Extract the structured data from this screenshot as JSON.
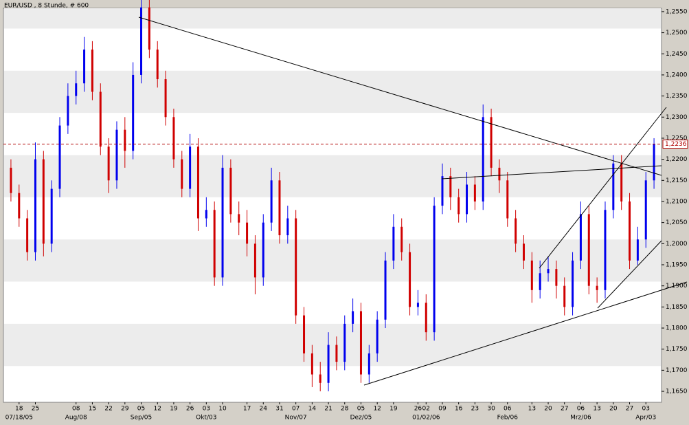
{
  "chart_data": {
    "type": "candlestick",
    "title": "EUR/USD , 8 Stunde, # 600",
    "categories": [
      null,
      "18",
      null,
      "25",
      null,
      null,
      null,
      null,
      "08",
      null,
      "15",
      null,
      "22",
      null,
      "29",
      null,
      "05",
      null,
      "12",
      null,
      "19",
      null,
      "26",
      null,
      "03",
      null,
      "10",
      null,
      null,
      "17",
      null,
      "24",
      null,
      "31",
      null,
      "07",
      null,
      "14",
      null,
      "21",
      null,
      "28",
      null,
      "05",
      null,
      "12",
      null,
      "19",
      null,
      null,
      "26",
      "02",
      null,
      "09",
      null,
      "16",
      null,
      "23",
      null,
      "30",
      null,
      "06",
      null,
      null,
      "13",
      null,
      "20",
      null,
      "27",
      null,
      "06",
      null,
      "13",
      null,
      "20",
      null,
      "27",
      null,
      "03",
      null
    ],
    "months": [
      null,
      "07/18/05",
      null,
      null,
      null,
      null,
      null,
      null,
      "Aug/08",
      null,
      null,
      null,
      null,
      null,
      null,
      null,
      "Sep/05",
      null,
      null,
      null,
      null,
      null,
      null,
      null,
      "Okt/03",
      null,
      null,
      null,
      null,
      null,
      null,
      null,
      null,
      null,
      null,
      "Nov/07",
      null,
      null,
      null,
      null,
      null,
      null,
      null,
      "Dez/05",
      null,
      null,
      null,
      null,
      null,
      null,
      null,
      "01/02/06",
      null,
      null,
      null,
      null,
      null,
      null,
      null,
      null,
      null,
      "Feb/06",
      null,
      null,
      null,
      null,
      null,
      null,
      null,
      null,
      "Mrz/06",
      null,
      null,
      null,
      null,
      null,
      null,
      null,
      "Apr/03",
      null
    ],
    "open": [
      1.218,
      1.212,
      1.206,
      1.198,
      1.22,
      1.2,
      1.213,
      1.228,
      1.235,
      1.238,
      1.246,
      1.236,
      1.223,
      1.215,
      1.227,
      1.222,
      1.24,
      1.256,
      1.246,
      1.239,
      1.23,
      1.22,
      1.213,
      1.223,
      1.206,
      1.208,
      1.192,
      1.218,
      1.207,
      1.205,
      1.2,
      1.192,
      1.205,
      1.215,
      1.202,
      1.206,
      1.183,
      1.174,
      1.169,
      1.167,
      1.176,
      1.172,
      1.181,
      1.184,
      1.169,
      1.174,
      1.182,
      1.196,
      1.204,
      1.198,
      1.185,
      1.186,
      1.179,
      1.209,
      1.216,
      1.211,
      1.207,
      1.214,
      1.21,
      1.23,
      1.218,
      1.215,
      1.206,
      1.2,
      1.196,
      1.189,
      1.193,
      1.194,
      1.19,
      1.185,
      1.196,
      1.207,
      1.19,
      1.189,
      1.208,
      1.219,
      1.21,
      1.196,
      1.201,
      1.215
    ],
    "high": [
      1.22,
      1.214,
      1.208,
      1.224,
      1.222,
      1.215,
      1.23,
      1.238,
      1.241,
      1.249,
      1.248,
      1.238,
      1.225,
      1.229,
      1.23,
      1.243,
      1.259,
      1.258,
      1.248,
      1.241,
      1.232,
      1.222,
      1.226,
      1.225,
      1.211,
      1.21,
      1.221,
      1.22,
      1.21,
      1.208,
      1.202,
      1.207,
      1.218,
      1.217,
      1.209,
      1.208,
      1.185,
      1.176,
      1.172,
      1.179,
      1.178,
      1.183,
      1.187,
      1.186,
      1.176,
      1.184,
      1.198,
      1.207,
      1.206,
      1.2,
      1.189,
      1.188,
      1.211,
      1.219,
      1.218,
      1.213,
      1.217,
      1.216,
      1.233,
      1.232,
      1.22,
      1.217,
      1.208,
      1.202,
      1.198,
      1.196,
      1.197,
      1.196,
      1.192,
      1.198,
      1.21,
      1.209,
      1.192,
      1.21,
      1.221,
      1.221,
      1.212,
      1.204,
      1.217,
      1.225
    ],
    "low": [
      1.21,
      1.204,
      1.196,
      1.196,
      1.197,
      1.198,
      1.211,
      1.226,
      1.233,
      1.236,
      1.234,
      1.221,
      1.212,
      1.213,
      1.218,
      1.22,
      1.238,
      1.244,
      1.237,
      1.228,
      1.218,
      1.211,
      1.211,
      1.203,
      1.204,
      1.19,
      1.19,
      1.205,
      1.202,
      1.197,
      1.188,
      1.19,
      1.203,
      1.2,
      1.2,
      1.181,
      1.172,
      1.166,
      1.165,
      1.165,
      1.17,
      1.17,
      1.179,
      1.167,
      1.167,
      1.172,
      1.18,
      1.194,
      1.196,
      1.183,
      1.183,
      1.177,
      1.177,
      1.207,
      1.208,
      1.205,
      1.205,
      1.208,
      1.208,
      1.216,
      1.212,
      1.204,
      1.198,
      1.194,
      1.186,
      1.187,
      1.191,
      1.187,
      1.183,
      1.183,
      1.194,
      1.188,
      1.186,
      1.187,
      1.206,
      1.208,
      1.194,
      1.195,
      1.199,
      1.213
    ],
    "close": [
      1.212,
      1.206,
      1.198,
      1.22,
      1.2,
      1.213,
      1.228,
      1.235,
      1.238,
      1.246,
      1.236,
      1.223,
      1.215,
      1.227,
      1.222,
      1.24,
      1.256,
      1.246,
      1.239,
      1.23,
      1.22,
      1.213,
      1.223,
      1.206,
      1.208,
      1.192,
      1.218,
      1.207,
      1.205,
      1.2,
      1.192,
      1.205,
      1.215,
      1.202,
      1.206,
      1.183,
      1.174,
      1.169,
      1.167,
      1.176,
      1.172,
      1.181,
      1.184,
      1.169,
      1.174,
      1.182,
      1.196,
      1.204,
      1.198,
      1.185,
      1.186,
      1.179,
      1.209,
      1.216,
      1.211,
      1.207,
      1.214,
      1.21,
      1.23,
      1.218,
      1.215,
      1.206,
      1.2,
      1.196,
      1.189,
      1.193,
      1.194,
      1.19,
      1.185,
      1.196,
      1.207,
      1.19,
      1.189,
      1.208,
      1.219,
      1.21,
      1.196,
      1.201,
      1.215,
      1.2236
    ],
    "up_color": "#0000ee",
    "down_color": "#d00000",
    "ylim": [
      1.1624,
      1.2558
    ],
    "yticks": [
      {
        "value": 1.165,
        "label": "1,1650"
      },
      {
        "value": 1.17,
        "label": "1,1700"
      },
      {
        "value": 1.175,
        "label": "1,1750"
      },
      {
        "value": 1.18,
        "label": "1,1800"
      },
      {
        "value": 1.185,
        "label": "1,1850"
      },
      {
        "value": 1.19,
        "label": "1,1900"
      },
      {
        "value": 1.195,
        "label": "1,1950"
      },
      {
        "value": 1.2,
        "label": "1,2000"
      },
      {
        "value": 1.205,
        "label": "1,2050"
      },
      {
        "value": 1.21,
        "label": "1,2100"
      },
      {
        "value": 1.215,
        "label": "1,2150"
      },
      {
        "value": 1.22,
        "label": "1,2200"
      },
      {
        "value": 1.225,
        "label": "1,2250"
      },
      {
        "value": 1.23,
        "label": "1,2300"
      },
      {
        "value": 1.235,
        "label": "1,2350"
      },
      {
        "value": 1.24,
        "label": "1,2400"
      },
      {
        "value": 1.245,
        "label": "1,2450"
      },
      {
        "value": 1.25,
        "label": "1,2500"
      },
      {
        "value": 1.255,
        "label": "1,2550"
      }
    ],
    "last_price": {
      "value": 1.2236,
      "label": "1,2236"
    },
    "last_price_color": "#b00000"
  }
}
